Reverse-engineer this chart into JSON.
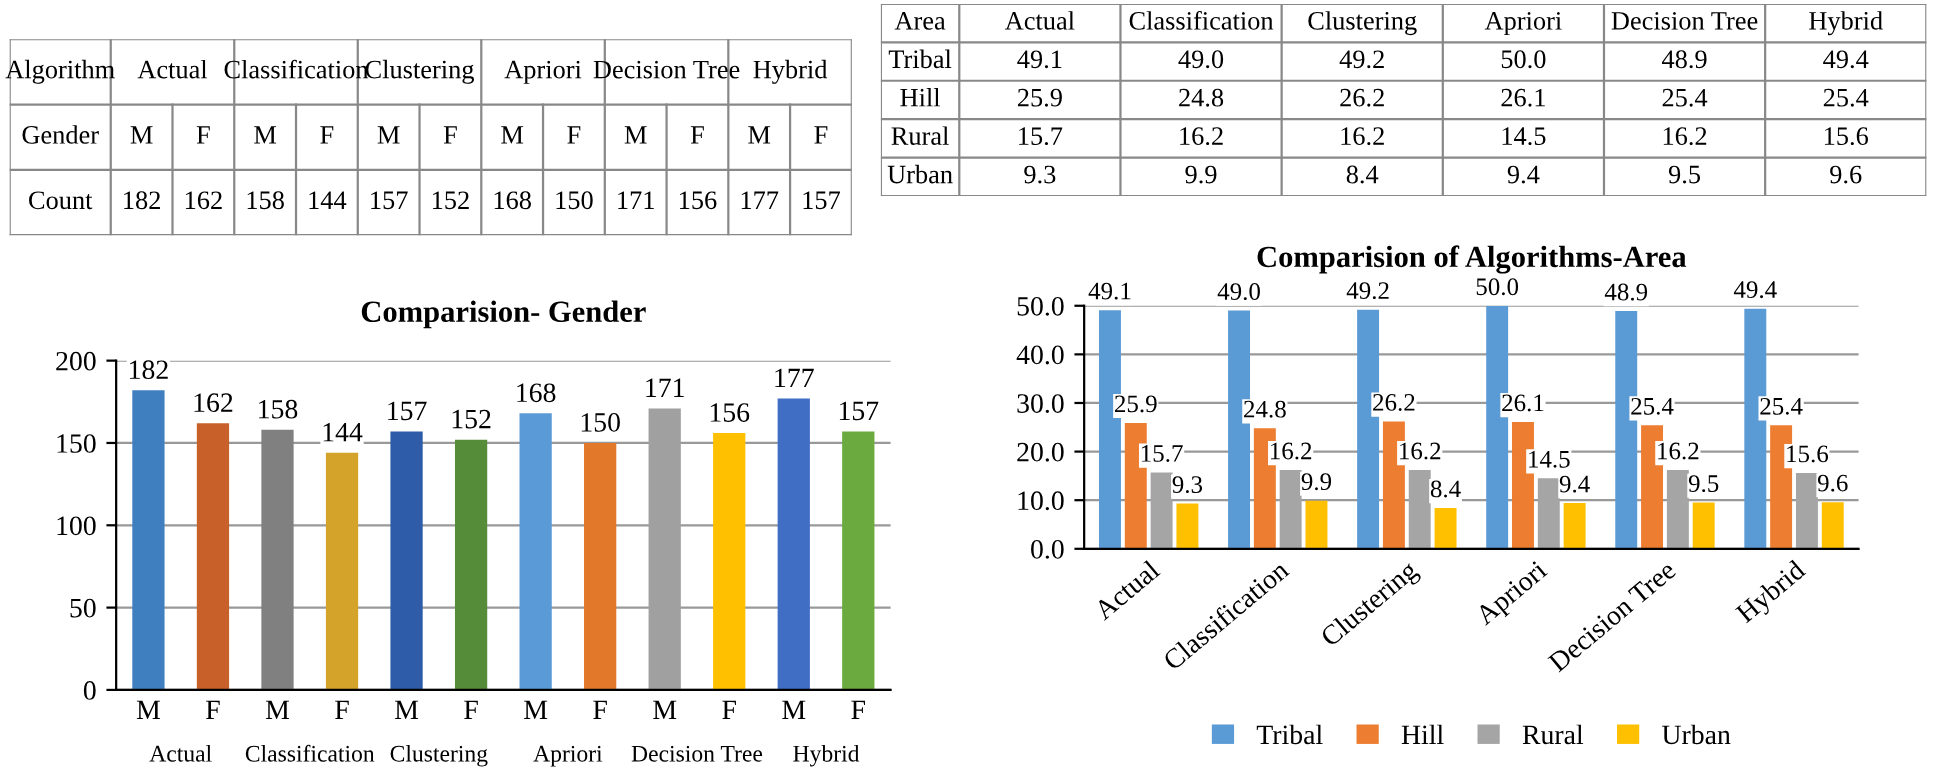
{
  "chart_data": [
    {
      "type": "other",
      "title": "Algorithm",
      "ylabel": "Gender",
      "annotations": [
        "Actual",
        "Classification",
        "Clustering",
        "Apriori",
        "Decision Tree",
        "Hybrid"
      ],
      "categories": [
        "M",
        "F",
        "M",
        "F",
        "M",
        "F",
        "M",
        "F",
        "M",
        "F",
        "M",
        "F"
      ],
      "series": [
        {
          "name": "Count",
          "values": [
            182,
            162,
            158,
            144,
            157,
            152,
            168,
            150,
            171,
            156,
            177,
            157
          ]
        }
      ],
      "data_labels": true
    },
    {
      "type": "other",
      "title": "Area",
      "categories": [
        "Actual",
        "Classification",
        "Clustering",
        "Apriori",
        "Decision Tree",
        "Hybrid"
      ],
      "series": [
        {
          "name": "Tribal",
          "values": [
            49.1,
            49.0,
            49.2,
            50.0,
            48.9,
            49.4
          ],
          "value_labels": [
            "49.1",
            "49.0",
            "49.2",
            "50.0",
            "48.9",
            "49.4"
          ]
        },
        {
          "name": "Hill",
          "values": [
            25.9,
            24.8,
            26.2,
            26.1,
            25.4,
            25.4
          ],
          "value_labels": [
            "25.9",
            "24.8",
            "26.2",
            "26.1",
            "25.4",
            "25.4"
          ]
        },
        {
          "name": "Rural",
          "values": [
            15.7,
            16.2,
            16.2,
            14.5,
            16.2,
            15.6
          ],
          "value_labels": [
            "15.7",
            "16.2",
            "16.2",
            "14.5",
            "16.2",
            "15.6"
          ]
        },
        {
          "name": "Urban",
          "values": [
            9.3,
            9.9,
            8.4,
            9.4,
            9.5,
            9.6
          ],
          "value_labels": [
            "9.3",
            "9.9",
            "8.4",
            "9.4",
            "9.5",
            "9.6"
          ]
        }
      ]
    },
    {
      "type": "bar",
      "title": "Comparision- Gender",
      "categories": [
        "M",
        "F",
        "M",
        "F",
        "M",
        "F",
        "M",
        "F",
        "M",
        "F",
        "M",
        "F"
      ],
      "annotations": [
        "Actual",
        "Classification",
        "Clustering",
        "Apriori",
        "Decision Tree",
        "Hybrid"
      ],
      "values": [
        182,
        162,
        158,
        144,
        157,
        152,
        168,
        150,
        171,
        156,
        177,
        157
      ],
      "colors": [
        "#3f7fbf",
        "#c8602a",
        "#808080",
        "#d4a32a",
        "#2e5ca8",
        "#548c3a",
        "#5a9ad6",
        "#e2782a",
        "#a0a0a0",
        "#ffc000",
        "#3f6ec4",
        "#6aaa3e"
      ],
      "ylim": [
        0,
        200
      ],
      "yticks": [
        0,
        50,
        100,
        150,
        200
      ],
      "grid": "y",
      "data_labels": true
    },
    {
      "type": "bar",
      "title": "Comparision of Algorithms-Area",
      "categories": [
        "Actual",
        "Classification",
        "Clustering",
        "Apriori",
        "Decision Tree",
        "Hybrid"
      ],
      "series": [
        {
          "name": "Tribal",
          "color": "#5b9bd5",
          "values": [
            49.1,
            49.0,
            49.2,
            50.0,
            48.9,
            49.4
          ],
          "value_labels": [
            "49.1",
            "49.0",
            "49.2",
            "50.0",
            "48.9",
            "49.4"
          ]
        },
        {
          "name": "Hill",
          "color": "#ed7d31",
          "values": [
            25.9,
            24.8,
            26.2,
            26.1,
            25.4,
            25.4
          ],
          "value_labels": [
            "25.9",
            "24.8",
            "26.2",
            "26.1",
            "25.4",
            "25.4"
          ]
        },
        {
          "name": "Rural",
          "color": "#a5a5a5",
          "values": [
            15.7,
            16.2,
            16.2,
            14.5,
            16.2,
            15.6
          ],
          "value_labels": [
            "15.7",
            "16.2",
            "16.2",
            "14.5",
            "16.2",
            "15.6"
          ]
        },
        {
          "name": "Urban",
          "color": "#ffc000",
          "values": [
            9.3,
            9.9,
            8.4,
            9.4,
            9.5,
            9.6
          ],
          "value_labels": [
            "9.3",
            "9.9",
            "8.4",
            "9.4",
            "9.5",
            "9.6"
          ]
        }
      ],
      "ylim": [
        0,
        50
      ],
      "yticks": [
        {
          "value": 0,
          "label": "0.0"
        },
        {
          "value": 10,
          "label": "10.0"
        },
        {
          "value": 20,
          "label": "20.0"
        },
        {
          "value": 30,
          "label": "30.0"
        },
        {
          "value": 40,
          "label": "40.0"
        },
        {
          "value": 50,
          "label": "50.0"
        }
      ],
      "grid": "y",
      "legend": "bottom"
    }
  ]
}
